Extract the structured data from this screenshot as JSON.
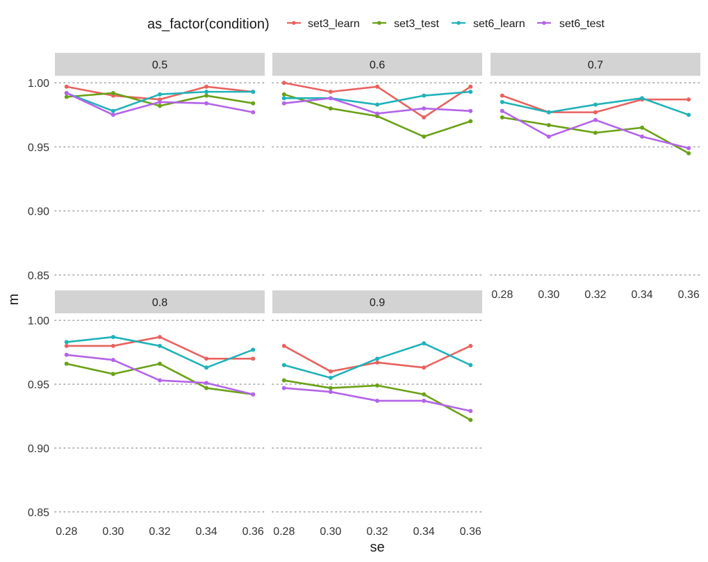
{
  "chart_data": {
    "type": "line",
    "facet_by": "0.5/0.6/0.7/0.8/0.9 strip labels",
    "xlabel": "se",
    "ylabel": "m",
    "xlim": [
      0.275,
      0.365
    ],
    "ylim": [
      0.845,
      1.005
    ],
    "x_ticks": [
      0.28,
      0.3,
      0.32,
      0.34,
      0.36
    ],
    "x_tick_labels": [
      "0.28",
      "0.30",
      "0.32",
      "0.34",
      "0.36"
    ],
    "y_ticks": [
      0.85,
      0.9,
      0.95,
      1.0
    ],
    "y_tick_labels": [
      "0.85",
      "0.90",
      "0.95",
      "1.00"
    ],
    "grid": "dotted horizontal major lines",
    "legend": {
      "title": "as_factor(condition)",
      "position": "top",
      "entries": [
        "set3_learn",
        "set3_test",
        "set6_learn",
        "set6_test"
      ]
    },
    "colors": {
      "set3_learn": "#e8625f",
      "set3_test": "#6aa116",
      "set6_learn": "#1fb2b9",
      "set6_test": "#b364e8"
    },
    "x": [
      0.28,
      0.3,
      0.32,
      0.34,
      0.36
    ],
    "panels": [
      {
        "label": "0.5",
        "series": [
          {
            "name": "set3_learn",
            "values": [
              0.997,
              0.99,
              0.987,
              0.997,
              0.993
            ]
          },
          {
            "name": "set3_test",
            "values": [
              0.989,
              0.992,
              0.982,
              0.99,
              0.984
            ]
          },
          {
            "name": "set6_learn",
            "values": [
              0.992,
              0.978,
              0.991,
              0.993,
              0.993
            ]
          },
          {
            "name": "set6_test",
            "values": [
              0.992,
              0.975,
              0.985,
              0.984,
              0.977
            ]
          }
        ]
      },
      {
        "label": "0.6",
        "series": [
          {
            "name": "set3_learn",
            "values": [
              1.0,
              0.993,
              0.997,
              0.973,
              0.997
            ]
          },
          {
            "name": "set3_test",
            "values": [
              0.991,
              0.98,
              0.974,
              0.958,
              0.97
            ]
          },
          {
            "name": "set6_learn",
            "values": [
              0.988,
              0.988,
              0.983,
              0.99,
              0.993
            ]
          },
          {
            "name": "set6_test",
            "values": [
              0.984,
              0.988,
              0.976,
              0.98,
              0.978
            ]
          }
        ]
      },
      {
        "label": "0.7",
        "series": [
          {
            "name": "set3_learn",
            "values": [
              0.99,
              0.977,
              0.977,
              0.987,
              0.987
            ]
          },
          {
            "name": "set3_test",
            "values": [
              0.973,
              0.967,
              0.961,
              0.965,
              0.945
            ]
          },
          {
            "name": "set6_learn",
            "values": [
              0.985,
              0.977,
              0.983,
              0.988,
              0.975
            ]
          },
          {
            "name": "set6_test",
            "values": [
              0.978,
              0.958,
              0.971,
              0.958,
              0.949
            ]
          }
        ]
      },
      {
        "label": "0.8",
        "series": [
          {
            "name": "set3_learn",
            "values": [
              0.98,
              0.98,
              0.987,
              0.97,
              0.97
            ]
          },
          {
            "name": "set3_test",
            "values": [
              0.966,
              0.958,
              0.966,
              0.947,
              0.942
            ]
          },
          {
            "name": "set6_learn",
            "values": [
              0.983,
              0.987,
              0.98,
              0.963,
              0.977
            ]
          },
          {
            "name": "set6_test",
            "values": [
              0.973,
              0.969,
              0.953,
              0.951,
              0.942
            ]
          }
        ]
      },
      {
        "label": "0.9",
        "series": [
          {
            "name": "set3_learn",
            "values": [
              0.98,
              0.96,
              0.967,
              0.963,
              0.98
            ]
          },
          {
            "name": "set3_test",
            "values": [
              0.953,
              0.947,
              0.949,
              0.942,
              0.922
            ]
          },
          {
            "name": "set6_learn",
            "values": [
              0.965,
              0.955,
              0.97,
              0.982,
              0.965
            ]
          },
          {
            "name": "set6_test",
            "values": [
              0.947,
              0.944,
              0.937,
              0.937,
              0.929
            ]
          }
        ]
      }
    ]
  }
}
